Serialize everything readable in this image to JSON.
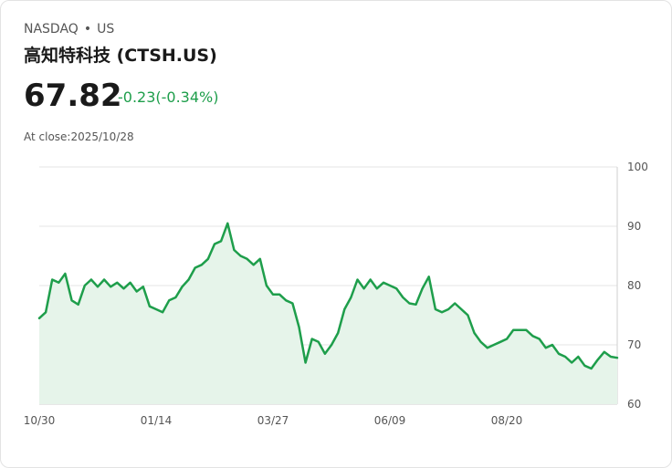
{
  "header": {
    "exchange": "NASDAQ",
    "separator": "•",
    "market": "US",
    "title": "高知特科技 (CTSH.US)",
    "price": "67.82",
    "change": "-0.23(-0.34%)",
    "close_label": "At close:2025/10/28"
  },
  "colors": {
    "line": "#1e9e4b",
    "fill": "#e6f4ea",
    "grid": "#e6e6e6"
  },
  "chart_data": {
    "type": "area",
    "ylim": [
      60,
      100
    ],
    "yticks": [
      100,
      90,
      80,
      70,
      60
    ],
    "grid": true,
    "xtick_labels": [
      "10/30",
      "01/14",
      "03/27",
      "06/09",
      "08/20"
    ],
    "values": [
      74.5,
      75.5,
      81,
      80.5,
      82,
      77.5,
      76.8,
      80,
      81,
      79.8,
      81,
      79.8,
      80.5,
      79.5,
      80.5,
      79,
      79.8,
      76.5,
      76,
      75.5,
      77.5,
      78,
      79.8,
      81,
      83,
      83.5,
      84.5,
      87,
      87.5,
      90.5,
      86,
      85,
      84.5,
      83.5,
      84.5,
      80,
      78.5,
      78.5,
      77.5,
      77,
      73,
      67,
      71,
      70.5,
      68.5,
      70,
      72,
      76,
      78,
      81,
      79.5,
      81,
      79.5,
      80.5,
      80,
      79.5,
      78,
      77,
      76.8,
      79.5,
      81.5,
      76,
      75.5,
      76,
      77,
      76,
      75,
      72,
      70.5,
      69.5,
      70,
      70.5,
      71,
      72.5,
      72.5,
      72.5,
      71.5,
      71,
      69.5,
      70,
      68.5,
      68,
      67,
      68,
      66.5,
      66,
      67.5,
      68.8,
      68,
      67.82
    ]
  }
}
